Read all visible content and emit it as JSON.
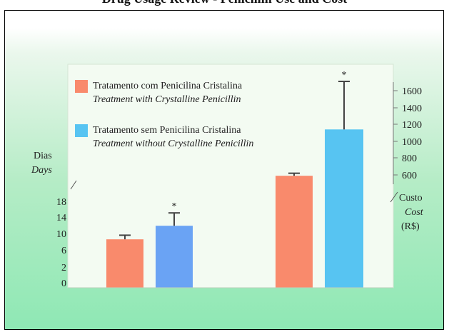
{
  "header": {
    "cut_text": "Drug Usage Review - Penicillin Use and Cost"
  },
  "colors": {
    "with": "#f98a6c",
    "without": "#57c4f2",
    "without_days": "#6aa3f4",
    "error": "#444444",
    "plot_bg": "#f3fbf2"
  },
  "chart_data": {
    "type": "bar",
    "categories": [
      "Dias / Days",
      "Custo / Cost (R$)"
    ],
    "series": [
      {
        "name": "Tratamento com Penicilina Cristalina",
        "name_en": "Treatment with Crystalline Penicillin",
        "days": 9.1,
        "days_err": 1.0,
        "cost": 590,
        "cost_err": 30
      },
      {
        "name": "Tratamento sem Penicilina Cristalina",
        "name_en": "Treatment without Crystalline Penicillin",
        "days": 12.4,
        "days_err": 3.2,
        "cost": 1140,
        "cost_err": 570,
        "significant": true
      }
    ],
    "left_axis": {
      "label": "Dias",
      "label_en": "Days",
      "ticks": [
        "0",
        "2",
        "6",
        "10",
        "14",
        "18"
      ]
    },
    "right_axis": {
      "label": "Custo",
      "label_en": "Cost",
      "unit": "(R$)",
      "ticks": [
        "600",
        "800",
        "1000",
        "1200",
        "1400",
        "1600"
      ]
    },
    "significance_marker": "*",
    "legend": "top-left"
  }
}
